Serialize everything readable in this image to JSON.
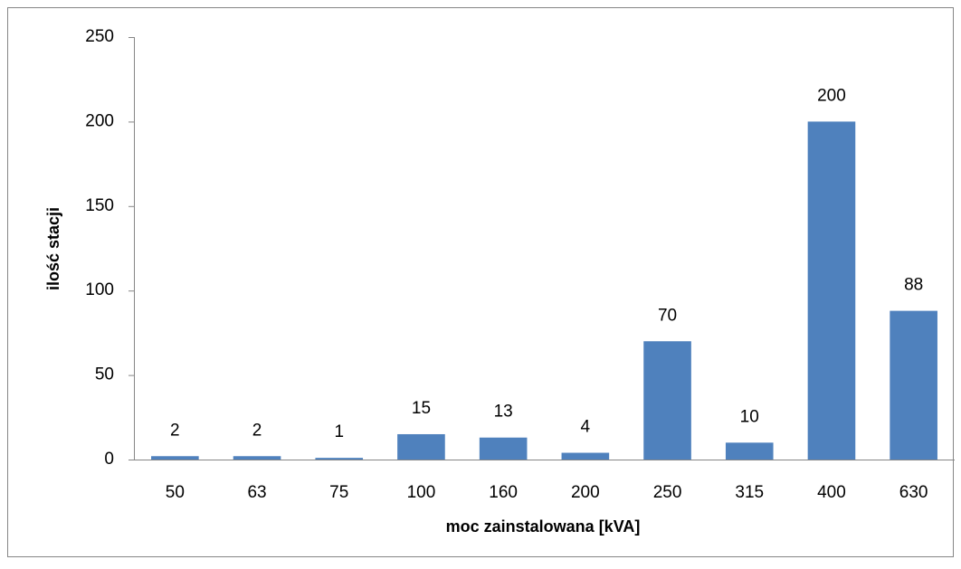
{
  "chart_data": {
    "type": "bar",
    "x_label": "moc zainstalowana [kVA]",
    "y_label": "ilość stacji",
    "categories": [
      "50",
      "63",
      "75",
      "100",
      "160",
      "200",
      "250",
      "315",
      "400",
      "630"
    ],
    "values": [
      2,
      2,
      1,
      15,
      13,
      4,
      70,
      10,
      200,
      88
    ],
    "color": "#4f81bd",
    "ylim": [
      0,
      250
    ],
    "yticks": [
      0,
      50,
      100,
      150,
      200,
      250
    ],
    "grid": false
  }
}
